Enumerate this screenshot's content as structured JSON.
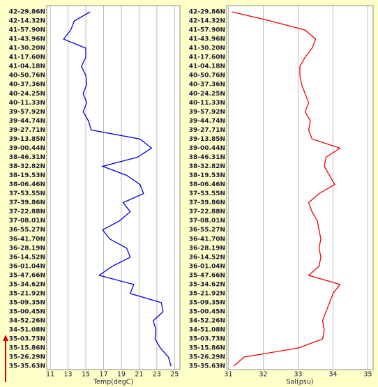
{
  "chart_data": [
    {
      "type": "line",
      "xlabel": "Temp(degC)",
      "categories": [
        "42-29.86N",
        "42-14.32N",
        "41-57.90N",
        "41-43.96N",
        "41-30.20N",
        "41-17.60N",
        "41-04.18N",
        "40-50.76N",
        "40-37.36N",
        "40-24.25N",
        "40-11.33N",
        "39-57.92N",
        "39-44.74N",
        "39-27.71N",
        "39-13.85N",
        "39-00.44N",
        "38-46.31N",
        "38-32.82N",
        "38-19.53N",
        "38-06.46N",
        "37-53.55N",
        "37-39.86N",
        "37-22.88N",
        "37-08.01N",
        "36-55.27N",
        "36-41.70N",
        "36-28.19N",
        "36-14.52N",
        "36-01.04N",
        "35-47.66N",
        "35-34.62N",
        "35-21.92N",
        "35-09.35N",
        "35-00.45N",
        "34-52.26N",
        "34-51.08N",
        "35-03.73N",
        "35-15.86N",
        "35-26.29N",
        "35-35.63N"
      ],
      "series": [
        {
          "color": "#0000dd",
          "values": [
            15.5,
            13.7,
            13.3,
            12.5,
            15,
            15,
            14.5,
            15,
            15.1,
            14.7,
            15.1,
            14.7,
            15.3,
            15.6,
            21.1,
            22.4,
            20.8,
            16.9,
            19.6,
            21.1,
            21.5,
            19.2,
            20,
            18.8,
            16.9,
            17.7,
            19.6,
            20,
            18,
            16.5,
            20.4,
            20,
            23.5,
            23.7,
            22.6,
            22.9,
            22.8,
            23.4,
            24.3,
            24.6
          ]
        }
      ],
      "xlim": [
        10.6,
        25.6
      ],
      "xticks": [
        11,
        13,
        15,
        17,
        19,
        21,
        23,
        25
      ],
      "grid": true
    },
    {
      "type": "line",
      "xlabel": "Sal(psu)",
      "categories": [
        "42-29.86N",
        "42-14.32N",
        "41-57.90N",
        "41-43.96N",
        "41-30.20N",
        "41-17.60N",
        "41-04.18N",
        "40-50.76N",
        "40-37.36N",
        "40-24.25N",
        "40-11.33N",
        "39-57.92N",
        "39-44.74N",
        "39-27.71N",
        "39-13.85N",
        "39-00.44N",
        "38-46.31N",
        "38-32.82N",
        "38-19.53N",
        "38-06.46N",
        "37-53.55N",
        "37-39.86N",
        "37-22.88N",
        "37-08.01N",
        "36-55.27N",
        "36-41.70N",
        "36-28.19N",
        "36-14.52N",
        "36-01.04N",
        "35-47.66N",
        "35-34.62N",
        "35-21.92N",
        "35-09.35N",
        "35-00.45N",
        "34-52.26N",
        "34-51.08N",
        "35-03.73N",
        "35-15.86N",
        "35-26.29N",
        "35-35.63N"
      ],
      "series": [
        {
          "color": "#ee0000",
          "values": [
            31.1,
            32.2,
            33.2,
            33.5,
            33.4,
            33.2,
            33.05,
            33.05,
            33.1,
            33.2,
            33.3,
            33.2,
            33.35,
            33.3,
            33.4,
            34.2,
            33.8,
            33.75,
            33.9,
            34.05,
            33.6,
            33.3,
            33.4,
            33.55,
            33.6,
            33.65,
            33.6,
            33.65,
            33.6,
            33.3,
            34.2,
            34,
            33.9,
            33.8,
            33.7,
            33.75,
            33.7,
            33,
            31.45,
            31.15
          ]
        }
      ],
      "xlim": [
        30.95,
        35.15
      ],
      "xticks": [
        31,
        32,
        33,
        34,
        35
      ],
      "grid": true
    }
  ]
}
